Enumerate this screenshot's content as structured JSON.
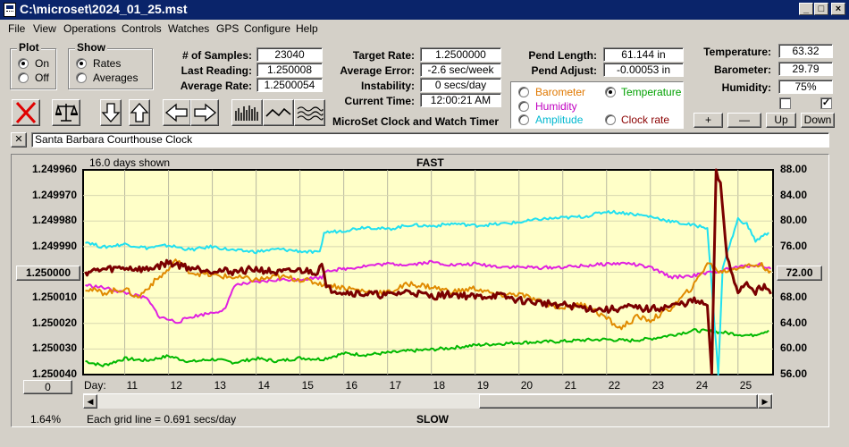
{
  "window": {
    "title": "C:\\microset\\2024_01_25.mst"
  },
  "menu": [
    "File",
    "View",
    "Operations",
    "Controls",
    "Watches",
    "GPS",
    "Configure",
    "Help"
  ],
  "plot_group": {
    "title": "Plot",
    "on_label": "On",
    "off_label": "Off",
    "selected": "On"
  },
  "show_group": {
    "title": "Show",
    "rates_label": "Rates",
    "averages_label": "Averages",
    "selected": "Rates"
  },
  "stats": {
    "samples_label": "# of Samples:",
    "samples": "23040",
    "last_reading_label": "Last Reading:",
    "last_reading": "1.250008",
    "average_rate_label": "Average Rate:",
    "average_rate": "1.2500054",
    "target_rate_label": "Target Rate:",
    "target_rate": "1.2500000",
    "average_error_label": "Average Error:",
    "average_error": "-2.6 sec/week",
    "instability_label": "Instability:",
    "instability": "0 secs/day",
    "current_time_label": "Current Time:",
    "current_time": "12:00:21 AM",
    "pend_length_label": "Pend Length:",
    "pend_length": "61.144 in",
    "pend_adjust_label": "Pend Adjust:",
    "pend_adjust": "-0.00053 in",
    "temperature_label": "Temperature:",
    "temperature": "63.32",
    "barometer_label": "Barometer:",
    "barometer": "29.79",
    "humidity_label": "Humidity:",
    "humidity": "75%"
  },
  "app_name": "MicroSet Clock and Watch Timer",
  "series_options": [
    {
      "label": "Barometer",
      "color": "#e07800",
      "selected": false
    },
    {
      "label": "Temperature",
      "color": "#00a000",
      "selected": true
    },
    {
      "label": "Humidity",
      "color": "#c000c0",
      "selected": false
    },
    {
      "label": "Clock rate",
      "color": "#8b0000",
      "selected": false
    },
    {
      "label": "Amplitude",
      "color": "#00b8d0",
      "selected": false
    }
  ],
  "adjust_buttons": {
    "plus": "+",
    "minus": "—",
    "up": "Up",
    "down": "Down"
  },
  "checkbox_right": "✓",
  "clock_name": "Santa Barbara Courthouse Clock",
  "close_label": "✕",
  "chart_data": {
    "type": "line",
    "days_shown": "16.0 days shown",
    "top_label": "FAST",
    "bottom_label": "SLOW",
    "x_label": "Day:",
    "x_ticks": [
      11,
      12,
      13,
      14,
      15,
      16,
      17,
      18,
      19,
      20,
      21,
      22,
      23,
      24,
      25
    ],
    "x_range": [
      10.05,
      25.8
    ],
    "left_axis": [
      "1.249960",
      "1.249970",
      "1.249980",
      "1.249990",
      "1.250000",
      "1.250010",
      "1.250020",
      "1.250030",
      "1.250040"
    ],
    "left_center_button": "1.250000",
    "left_range": [
      1.24996,
      1.25004
    ],
    "right_axis": [
      "88.00",
      "84.00",
      "80.00",
      "76.00",
      "72.00",
      "68.00",
      "64.00",
      "60.00",
      "56.00"
    ],
    "right_center_button": "72.00",
    "right_range": [
      56,
      88
    ],
    "bottom_left_button": "0",
    "percent": "1.64%",
    "grid_note": "Each grid line = 0.691 secs/day",
    "series": [
      {
        "name": "Temperature",
        "color": "#00b800",
        "axis": "right",
        "points": [
          [
            10.1,
            58.1
          ],
          [
            10.5,
            57.4
          ],
          [
            11,
            58.5
          ],
          [
            11.5,
            58.2
          ],
          [
            12,
            58.9
          ],
          [
            12.5,
            58.0
          ],
          [
            13,
            58.4
          ],
          [
            13.5,
            57.9
          ],
          [
            14,
            58.5
          ],
          [
            14.5,
            58.1
          ],
          [
            15,
            58.6
          ],
          [
            15.5,
            58.4
          ],
          [
            16,
            59.3
          ],
          [
            16.5,
            59.1
          ],
          [
            17,
            59.4
          ],
          [
            17.5,
            59.7
          ],
          [
            18,
            59.9
          ],
          [
            18.5,
            60.2
          ],
          [
            19,
            60.6
          ],
          [
            19.5,
            60.8
          ],
          [
            20,
            61.0
          ],
          [
            20.5,
            61.1
          ],
          [
            21,
            61.2
          ],
          [
            21.5,
            61.4
          ],
          [
            22,
            61.5
          ],
          [
            22.5,
            61.3
          ],
          [
            23,
            61.6
          ],
          [
            23.5,
            62.2
          ],
          [
            24,
            62.9
          ],
          [
            24.5,
            62.7
          ],
          [
            25,
            62.3
          ],
          [
            25.3,
            62.1
          ],
          [
            25.7,
            62.9
          ]
        ]
      },
      {
        "name": "Amplitude",
        "color": "#20e0f0",
        "axis": "right",
        "points": [
          [
            10.1,
            76.8
          ],
          [
            10.5,
            75.9
          ],
          [
            11,
            76.4
          ],
          [
            11.5,
            75.8
          ],
          [
            12,
            76.2
          ],
          [
            12.5,
            75.5
          ],
          [
            13,
            76.0
          ],
          [
            13.5,
            75.4
          ],
          [
            14,
            75.2
          ],
          [
            14.5,
            75.6
          ],
          [
            15,
            75.3
          ],
          [
            15.45,
            75.0
          ],
          [
            15.55,
            78.2
          ],
          [
            16,
            78.5
          ],
          [
            16.5,
            79.1
          ],
          [
            17,
            78.7
          ],
          [
            17.5,
            79.4
          ],
          [
            18,
            79.2
          ],
          [
            18.5,
            79.6
          ],
          [
            19,
            79.3
          ],
          [
            19.5,
            79.5
          ],
          [
            20,
            79.8
          ],
          [
            20.5,
            80.3
          ],
          [
            21,
            80.5
          ],
          [
            21.5,
            80.7
          ],
          [
            22,
            81.5
          ],
          [
            22.5,
            81.2
          ],
          [
            23,
            80.7
          ],
          [
            23.5,
            79.9
          ],
          [
            24,
            79.3
          ],
          [
            24.3,
            79.0
          ],
          [
            24.55,
            56.0
          ],
          [
            24.65,
            72.8
          ],
          [
            25,
            80.3
          ],
          [
            25.2,
            79.5
          ],
          [
            25.4,
            76.9
          ],
          [
            25.7,
            78.2
          ]
        ]
      },
      {
        "name": "Humidity",
        "color": "#e020e0",
        "axis": "right",
        "points": [
          [
            10.1,
            70.0
          ],
          [
            10.5,
            69.6
          ],
          [
            11,
            68.8
          ],
          [
            11.5,
            67.9
          ],
          [
            11.8,
            65.0
          ],
          [
            12.2,
            64.2
          ],
          [
            12.5,
            65.0
          ],
          [
            13,
            65.7
          ],
          [
            13.3,
            66.2
          ],
          [
            13.5,
            70.0
          ],
          [
            14,
            70.4
          ],
          [
            14.5,
            70.8
          ],
          [
            15,
            70.9
          ],
          [
            15.5,
            71.2
          ],
          [
            15.6,
            72.3
          ],
          [
            16,
            72.5
          ],
          [
            16.5,
            73.0
          ],
          [
            17,
            73.3
          ],
          [
            17.5,
            73.2
          ],
          [
            18,
            73.6
          ],
          [
            18.5,
            73.1
          ],
          [
            19,
            73.3
          ],
          [
            19.5,
            72.9
          ],
          [
            20,
            72.8
          ],
          [
            20.5,
            72.7
          ],
          [
            21,
            72.8
          ],
          [
            21.5,
            73.0
          ],
          [
            22,
            73.3
          ],
          [
            22.5,
            73.4
          ],
          [
            23,
            72.7
          ],
          [
            23.5,
            71.2
          ],
          [
            24,
            71.5
          ],
          [
            24.5,
            72.1
          ],
          [
            25,
            72.8
          ],
          [
            25.5,
            73.2
          ],
          [
            25.75,
            72.5
          ]
        ]
      },
      {
        "name": "Barometer",
        "color": "#e08a00",
        "axis": "right",
        "points": [
          [
            10.1,
            69.5
          ],
          [
            10.5,
            68.8
          ],
          [
            11,
            69.4
          ],
          [
            11.3,
            68.0
          ],
          [
            11.6,
            70.1
          ],
          [
            12,
            72.4
          ],
          [
            12.2,
            74.0
          ],
          [
            12.5,
            72.0
          ],
          [
            13,
            71.5
          ],
          [
            13.5,
            71.2
          ],
          [
            14,
            70.8
          ],
          [
            14.5,
            71.3
          ],
          [
            15,
            70.9
          ],
          [
            15.5,
            70.2
          ],
          [
            16,
            69.6
          ],
          [
            16.5,
            69.0
          ],
          [
            17,
            68.8
          ],
          [
            17.5,
            70.2
          ],
          [
            18,
            69.7
          ],
          [
            18.5,
            68.9
          ],
          [
            19,
            69.5
          ],
          [
            19.5,
            68.4
          ],
          [
            20,
            68.6
          ],
          [
            20.5,
            67.3
          ],
          [
            21,
            66.5
          ],
          [
            21.5,
            67.0
          ],
          [
            22,
            64.8
          ],
          [
            22.3,
            63.2
          ],
          [
            22.7,
            65.0
          ],
          [
            23,
            64.5
          ],
          [
            23.5,
            66.5
          ],
          [
            24,
            70.0
          ],
          [
            24.3,
            73.5
          ],
          [
            24.6,
            72.0
          ],
          [
            25,
            72.8
          ],
          [
            25.5,
            73.2
          ],
          [
            25.75,
            72.2
          ]
        ]
      },
      {
        "name": "Clock rate",
        "color": "#7a0000",
        "axis": "right",
        "points": [
          [
            10.1,
            72.0
          ],
          [
            10.5,
            72.4
          ],
          [
            11,
            72.7
          ],
          [
            11.5,
            72.4
          ],
          [
            12,
            73.5
          ],
          [
            12.5,
            72.7
          ],
          [
            13,
            72.3
          ],
          [
            13.5,
            72.1
          ],
          [
            14,
            72.5
          ],
          [
            14.5,
            71.9
          ],
          [
            15,
            72.3
          ],
          [
            15.4,
            72.0
          ],
          [
            15.5,
            73.8
          ],
          [
            15.6,
            69.5
          ],
          [
            16,
            68.9
          ],
          [
            16.5,
            68.6
          ],
          [
            17,
            68.4
          ],
          [
            17.5,
            69.0
          ],
          [
            18,
            68.2
          ],
          [
            18.5,
            68.6
          ],
          [
            19,
            68.1
          ],
          [
            19.5,
            68.4
          ],
          [
            20,
            67.6
          ],
          [
            20.5,
            67.2
          ],
          [
            21,
            66.9
          ],
          [
            21.5,
            66.4
          ],
          [
            22,
            66.1
          ],
          [
            22.5,
            66.5
          ],
          [
            23,
            66.2
          ],
          [
            23.5,
            66.7
          ],
          [
            24,
            67.5
          ],
          [
            24.3,
            66.8
          ],
          [
            24.4,
            56.2
          ],
          [
            24.5,
            87.5
          ],
          [
            24.6,
            86.0
          ],
          [
            24.75,
            74.0
          ],
          [
            25,
            69.0
          ],
          [
            25.2,
            70.4
          ],
          [
            25.4,
            69.0
          ],
          [
            25.6,
            70.0
          ],
          [
            25.75,
            68.6
          ]
        ]
      }
    ]
  }
}
